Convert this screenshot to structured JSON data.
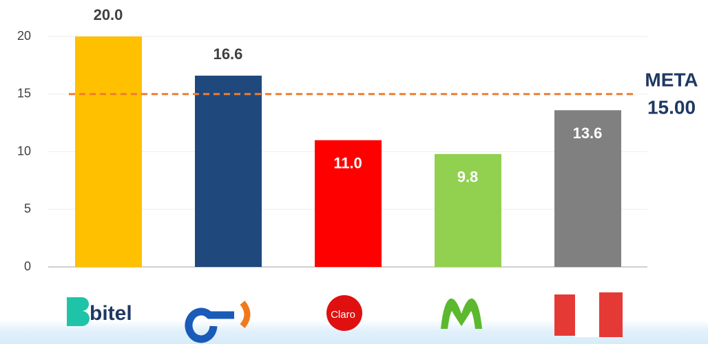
{
  "chart_data": {
    "type": "bar",
    "categories": [
      "bitel",
      null,
      "Claro",
      null,
      null
    ],
    "values": [
      20.0,
      16.6,
      11.0,
      9.8,
      13.6
    ],
    "value_labels": [
      "20.0",
      "16.6",
      "11.0",
      "9.8",
      "13.6"
    ],
    "colors": [
      "#ffc000",
      "#1f497d",
      "#ff0000",
      "#92d050",
      "#808080"
    ],
    "label_position": [
      "outside",
      "outside",
      "inside",
      "inside",
      "inside"
    ],
    "ylim": [
      0,
      20
    ],
    "yticks": [
      0,
      5,
      10,
      15,
      20
    ],
    "grid": true,
    "target": {
      "value": 15,
      "label": "META",
      "value_label": "15.00",
      "color": "#ed7d31"
    }
  }
}
